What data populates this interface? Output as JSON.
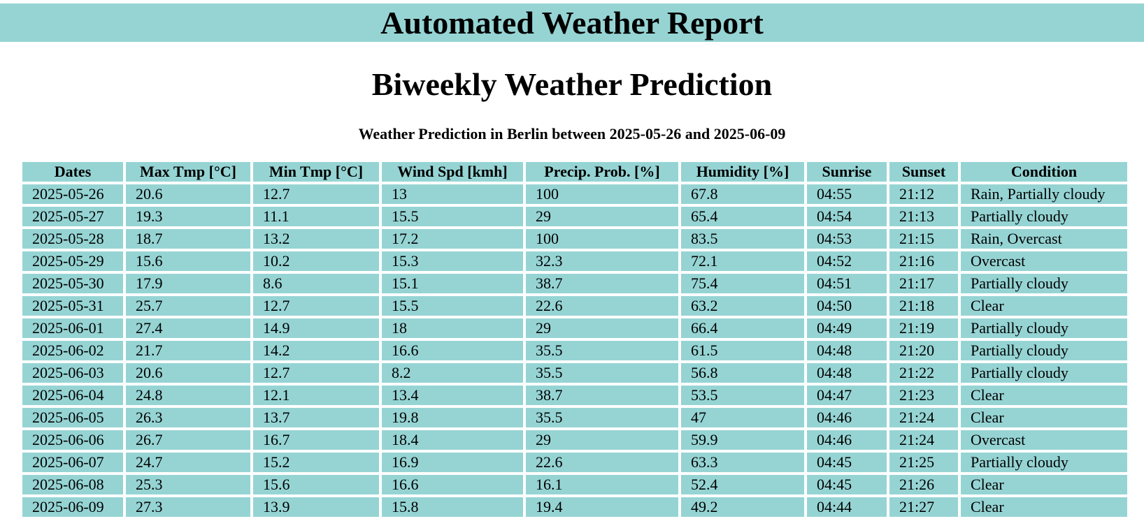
{
  "banner": {
    "text": "Automated Weather Report"
  },
  "title": "Biweekly Weather Prediction",
  "subtitle": "Weather Prediction in Berlin between 2025-05-26 and 2025-06-09",
  "colors": {
    "cell_background": "#96d4d4",
    "page_background": "#ffffff"
  },
  "table": {
    "headers": [
      "Dates",
      "Max Tmp [°C]",
      "Min Tmp [°C]",
      "Wind Spd [kmh]",
      "Precip. Prob. [%]",
      "Humidity [%]",
      "Sunrise",
      "Sunset",
      "Condition"
    ],
    "rows": [
      [
        "2025-05-26",
        "20.6",
        "12.7",
        "13",
        "100",
        "67.8",
        "04:55",
        "21:12",
        "Rain, Partially cloudy"
      ],
      [
        "2025-05-27",
        "19.3",
        "11.1",
        "15.5",
        "29",
        "65.4",
        "04:54",
        "21:13",
        "Partially cloudy"
      ],
      [
        "2025-05-28",
        "18.7",
        "13.2",
        "17.2",
        "100",
        "83.5",
        "04:53",
        "21:15",
        "Rain, Overcast"
      ],
      [
        "2025-05-29",
        "15.6",
        "10.2",
        "15.3",
        "32.3",
        "72.1",
        "04:52",
        "21:16",
        "Overcast"
      ],
      [
        "2025-05-30",
        "17.9",
        "8.6",
        "15.1",
        "38.7",
        "75.4",
        "04:51",
        "21:17",
        "Partially cloudy"
      ],
      [
        "2025-05-31",
        "25.7",
        "12.7",
        "15.5",
        "22.6",
        "63.2",
        "04:50",
        "21:18",
        "Clear"
      ],
      [
        "2025-06-01",
        "27.4",
        "14.9",
        "18",
        "29",
        "66.4",
        "04:49",
        "21:19",
        "Partially cloudy"
      ],
      [
        "2025-06-02",
        "21.7",
        "14.2",
        "16.6",
        "35.5",
        "61.5",
        "04:48",
        "21:20",
        "Partially cloudy"
      ],
      [
        "2025-06-03",
        "20.6",
        "12.7",
        "8.2",
        "35.5",
        "56.8",
        "04:48",
        "21:22",
        "Partially cloudy"
      ],
      [
        "2025-06-04",
        "24.8",
        "12.1",
        "13.4",
        "38.7",
        "53.5",
        "04:47",
        "21:23",
        "Clear"
      ],
      [
        "2025-06-05",
        "26.3",
        "13.7",
        "19.8",
        "35.5",
        "47",
        "04:46",
        "21:24",
        "Clear"
      ],
      [
        "2025-06-06",
        "26.7",
        "16.7",
        "18.4",
        "29",
        "59.9",
        "04:46",
        "21:24",
        "Overcast"
      ],
      [
        "2025-06-07",
        "24.7",
        "15.2",
        "16.9",
        "22.6",
        "63.3",
        "04:45",
        "21:25",
        "Partially cloudy"
      ],
      [
        "2025-06-08",
        "25.3",
        "15.6",
        "16.6",
        "16.1",
        "52.4",
        "04:45",
        "21:26",
        "Clear"
      ],
      [
        "2025-06-09",
        "27.3",
        "13.9",
        "15.8",
        "19.4",
        "49.2",
        "04:44",
        "21:27",
        "Clear"
      ]
    ]
  }
}
